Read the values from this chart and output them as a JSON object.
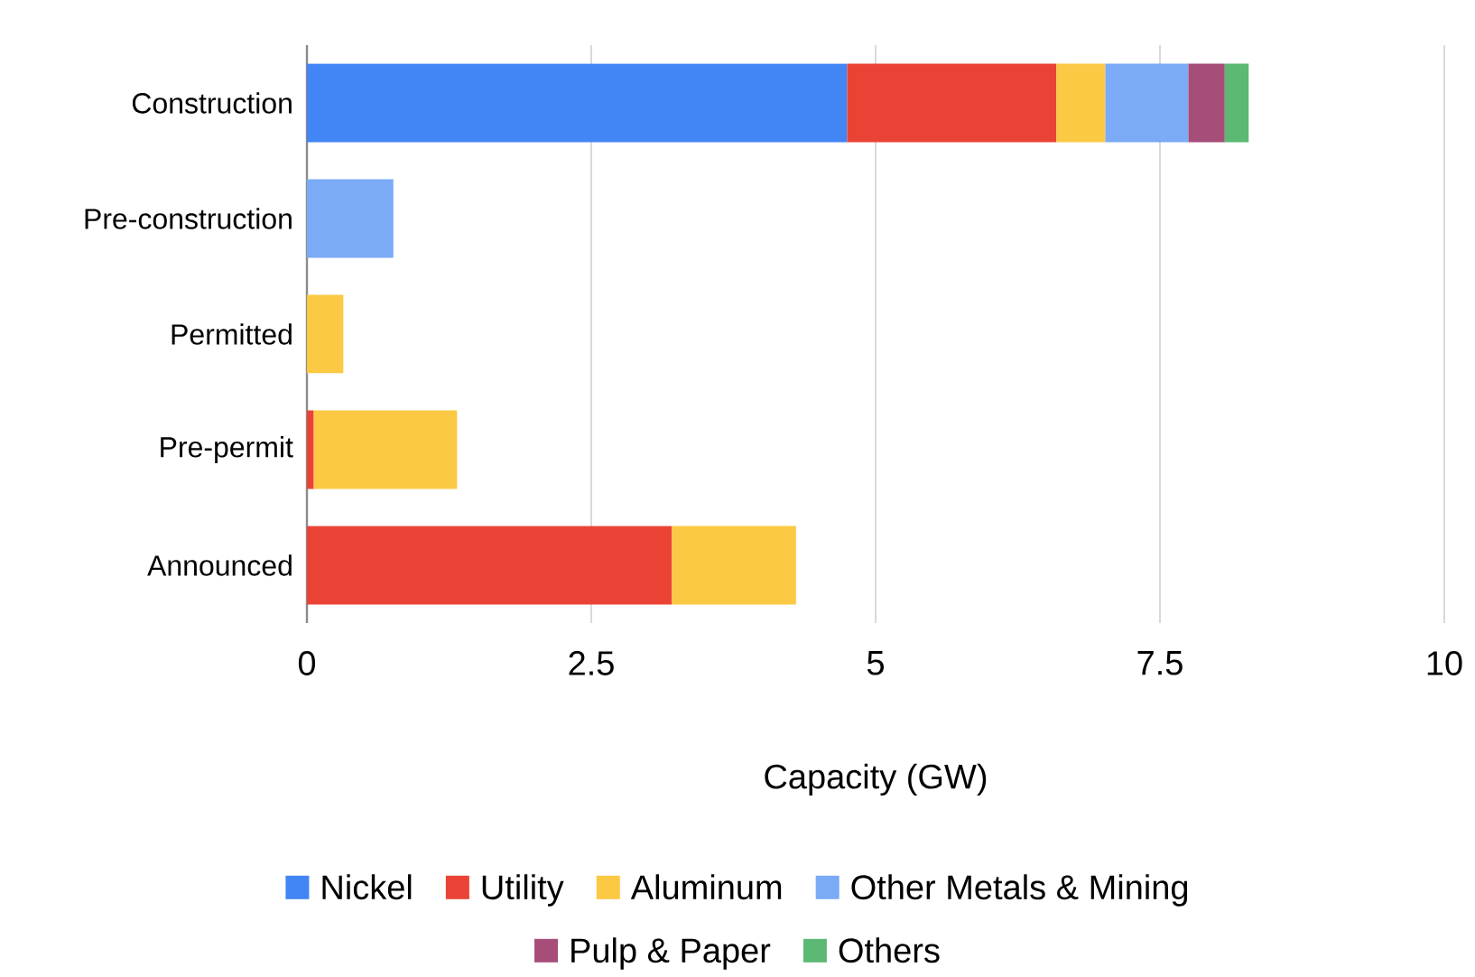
{
  "chart_data": {
    "type": "bar",
    "orientation": "horizontal",
    "stacked": true,
    "categories": [
      "Construction",
      "Pre-construction",
      "Permitted",
      "Pre-permit",
      "Announced"
    ],
    "series": [
      {
        "name": "Nickel",
        "color": "#4285f4",
        "values": [
          4.75,
          null,
          null,
          null,
          null
        ]
      },
      {
        "name": "Utility",
        "color": "#ea4335",
        "values": [
          1.84,
          null,
          null,
          0.06,
          3.21
        ]
      },
      {
        "name": "Aluminum",
        "color": "#fbc943",
        "values": [
          0.43,
          null,
          0.32,
          1.26,
          1.09
        ]
      },
      {
        "name": "Other Metals & Mining",
        "color": "#7baaf7",
        "values": [
          0.73,
          0.76,
          null,
          null,
          null
        ]
      },
      {
        "name": "Pulp & Paper",
        "color": "#a64d79",
        "values": [
          0.32,
          null,
          null,
          null,
          null
        ]
      },
      {
        "name": "Others",
        "color": "#5bb974",
        "values": [
          0.21,
          null,
          null,
          null,
          null
        ]
      }
    ],
    "xlim": [
      0,
      10
    ],
    "xticks": [
      0,
      2.5,
      5,
      7.5,
      10
    ],
    "xlabel": "Capacity (GW)",
    "grid": "x",
    "legend": "bottom"
  }
}
